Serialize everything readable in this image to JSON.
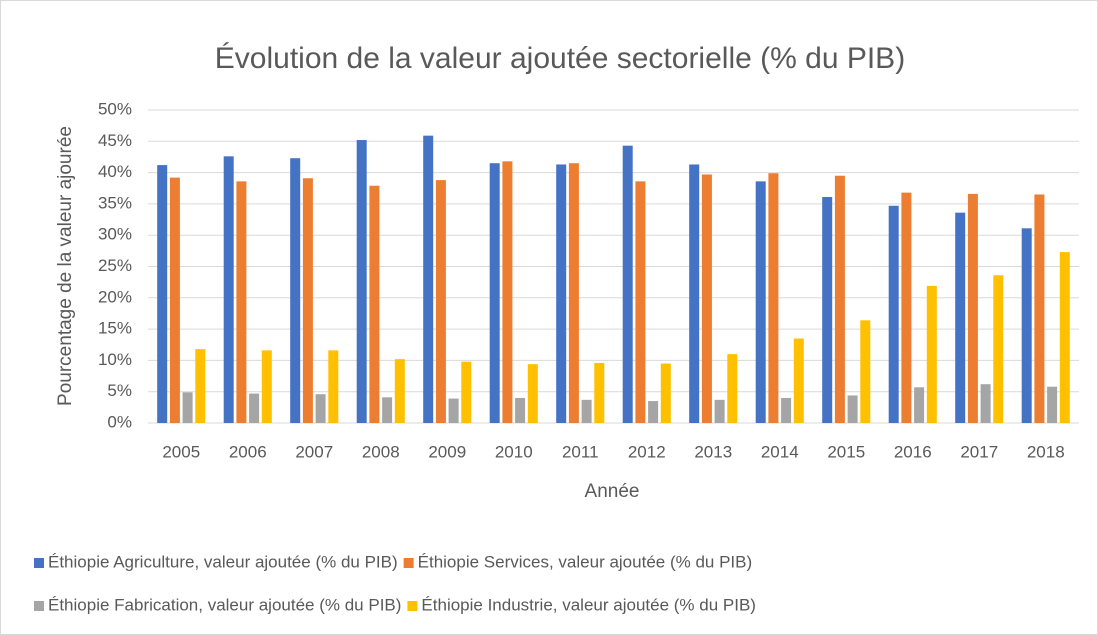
{
  "chart_data": {
    "type": "bar",
    "title": "Évolution de la valeur ajoutée sectorielle (% du PIB)",
    "x_label": "Année",
    "y_label": "Pourcentage de la valeur ajourée",
    "categories": [
      "2005",
      "2006",
      "2007",
      "2008",
      "2009",
      "2010",
      "2011",
      "2012",
      "2013",
      "2014",
      "2015",
      "2016",
      "2017",
      "2018"
    ],
    "series": [
      {
        "name": "Éthiopie Agriculture, valeur ajoutée (% du PIB)",
        "color": "#4472c4",
        "values": [
          41.2,
          42.6,
          42.3,
          45.2,
          45.9,
          41.5,
          41.3,
          44.3,
          41.3,
          38.6,
          36.1,
          34.7,
          33.6,
          31.1
        ]
      },
      {
        "name": "Éthiopie Services, valeur ajoutée (% du PIB)",
        "color": "#ed7d31",
        "values": [
          39.2,
          38.6,
          39.1,
          37.9,
          38.8,
          41.8,
          41.5,
          38.6,
          39.7,
          39.9,
          39.5,
          36.8,
          36.6,
          36.5
        ]
      },
      {
        "name": "Éthiopie Fabrication, valeur ajoutée (% du PIB)",
        "color": "#a5a5a5",
        "values": [
          4.9,
          4.7,
          4.6,
          4.1,
          3.9,
          4.0,
          3.7,
          3.5,
          3.7,
          4.0,
          4.4,
          5.7,
          6.2,
          5.8
        ]
      },
      {
        "name": "Éthiopie Industrie, valeur ajoutée (% du PIB)",
        "color": "#ffc000",
        "values": [
          11.8,
          11.6,
          11.6,
          10.2,
          9.8,
          9.4,
          9.6,
          9.5,
          11.0,
          13.5,
          16.4,
          21.9,
          23.6,
          27.3
        ]
      }
    ],
    "ylim": [
      0,
      50
    ],
    "yticks": [
      {
        "value": 0,
        "label": "0%"
      },
      {
        "value": 5,
        "label": "5%"
      },
      {
        "value": 10,
        "label": "10%"
      },
      {
        "value": 15,
        "label": "15%"
      },
      {
        "value": 20,
        "label": "20%"
      },
      {
        "value": 25,
        "label": "25%"
      },
      {
        "value": 30,
        "label": "30%"
      },
      {
        "value": 35,
        "label": "35%"
      },
      {
        "value": 40,
        "label": "40%"
      },
      {
        "value": 45,
        "label": "45%"
      },
      {
        "value": 50,
        "label": "50%"
      }
    ],
    "grid": true,
    "legend": "bottom"
  }
}
